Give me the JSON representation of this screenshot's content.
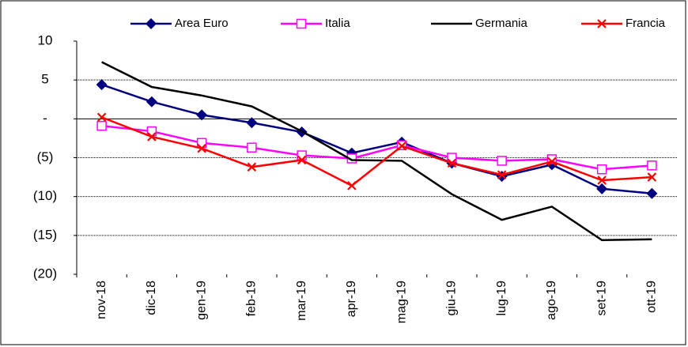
{
  "chart_data": {
    "type": "line",
    "categories": [
      "nov-18",
      "dic-18",
      "gen-19",
      "feb-19",
      "mar-19",
      "apr-19",
      "mag-19",
      "giu-19",
      "lug-19",
      "ago-19",
      "set-19",
      "ott-19"
    ],
    "series": [
      {
        "name": "Area Euro",
        "color": "#000080",
        "marker": "diamond",
        "values": [
          4.4,
          2.2,
          0.5,
          -0.5,
          -1.7,
          -4.4,
          -3.0,
          -5.7,
          -7.4,
          -5.9,
          -9.0,
          -9.6
        ]
      },
      {
        "name": "Italia",
        "color": "#ff00ff",
        "marker": "square",
        "values": [
          -0.9,
          -1.6,
          -3.1,
          -3.7,
          -4.7,
          -5.1,
          -3.4,
          -5.0,
          -5.4,
          -5.2,
          -6.5,
          -6.0
        ]
      },
      {
        "name": "Germania",
        "color": "#000000",
        "marker": "none",
        "values": [
          7.3,
          4.1,
          3.0,
          1.6,
          -1.6,
          -5.3,
          -5.4,
          -9.7,
          -13.0,
          -11.3,
          -15.6,
          -15.5
        ]
      },
      {
        "name": "Francia",
        "color": "#ff0000",
        "marker": "x",
        "values": [
          0.2,
          -2.3,
          -3.8,
          -6.2,
          -5.3,
          -8.6,
          -3.5,
          -5.7,
          -7.2,
          -5.5,
          -7.9,
          -7.5
        ]
      }
    ],
    "ylim": [
      -20,
      10
    ],
    "yticks": [
      10,
      5,
      {
        "value": 0,
        "label": "-"
      },
      {
        "value": -5,
        "label": "(5)"
      },
      {
        "value": -10,
        "label": "(10)"
      },
      {
        "value": -15,
        "label": "(15)"
      },
      {
        "value": -20,
        "label": "(20)"
      }
    ],
    "grid": true,
    "legend": "top"
  }
}
